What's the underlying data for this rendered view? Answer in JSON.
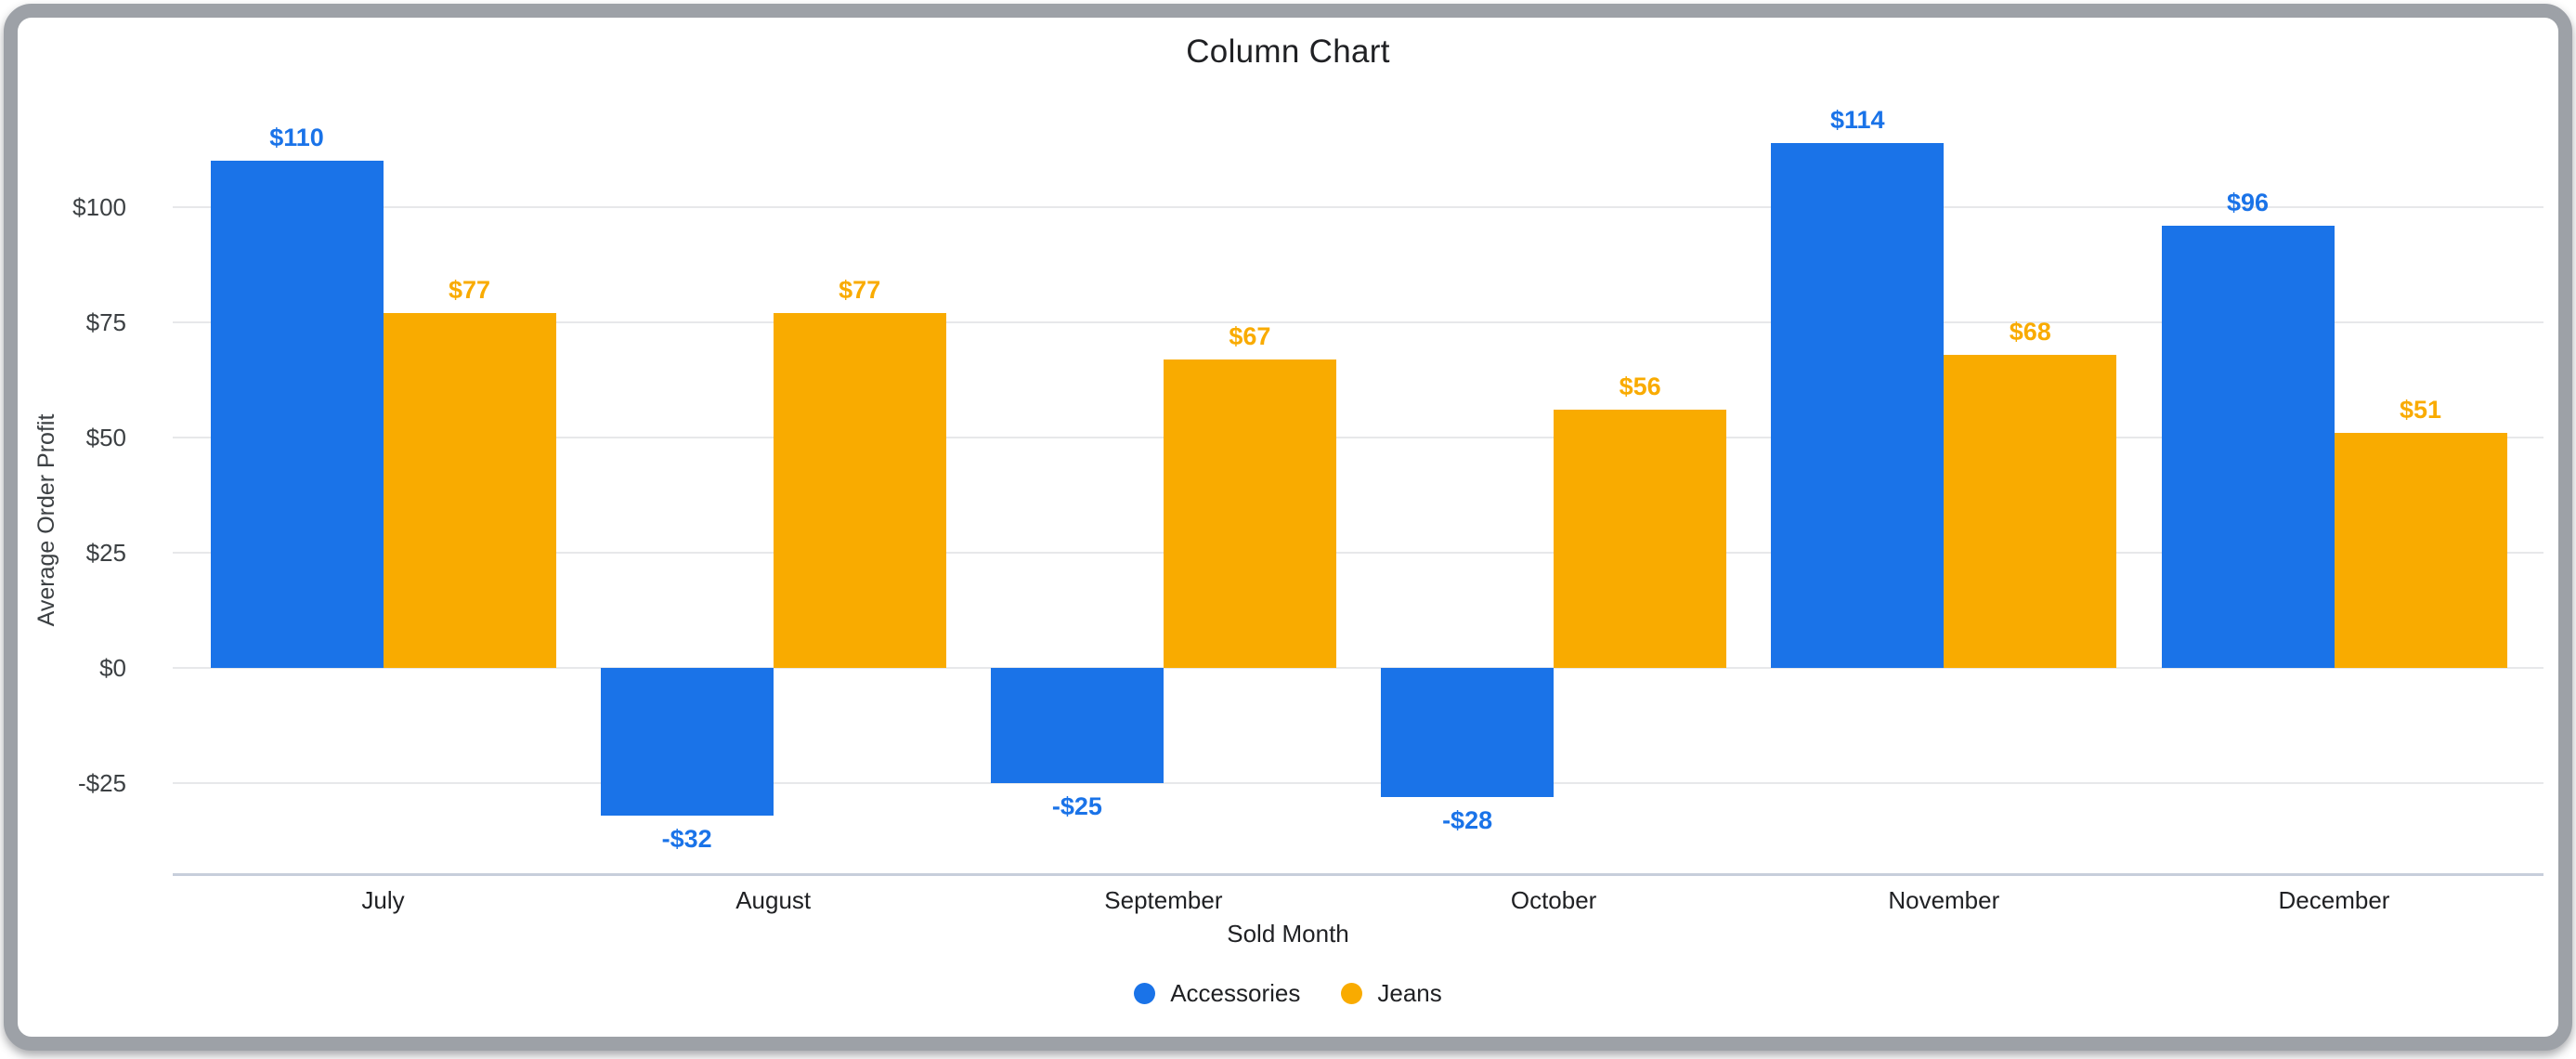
{
  "window": {
    "frame_border_color": "#9da1a7",
    "background_color": "#ffffff"
  },
  "chart_data": {
    "type": "bar",
    "title": "Column Chart",
    "xlabel": "Sold Month",
    "ylabel": "Average Order Profit",
    "categories": [
      "July",
      "August",
      "September",
      "October",
      "November",
      "December"
    ],
    "series": [
      {
        "name": "Accessories",
        "color": "#1a73e8",
        "values": [
          110,
          -32,
          -25,
          -28,
          114,
          96
        ],
        "value_labels": [
          "$110",
          "-$32",
          "-$25",
          "-$28",
          "$114",
          "$96"
        ]
      },
      {
        "name": "Jeans",
        "color": "#f9ab00",
        "values": [
          77,
          77,
          67,
          56,
          68,
          51
        ],
        "value_labels": [
          "$77",
          "$77",
          "$67",
          "$56",
          "$68",
          "$51"
        ]
      }
    ],
    "y_ticks": [
      {
        "value": 100,
        "label": "$100"
      },
      {
        "value": 75,
        "label": "$75"
      },
      {
        "value": 50,
        "label": "$50"
      },
      {
        "value": 25,
        "label": "$25"
      },
      {
        "value": 0,
        "label": "$0"
      },
      {
        "value": -25,
        "label": "-$25"
      }
    ],
    "ylim": [
      -45,
      125
    ],
    "grid": true,
    "gridline_color": "#e7e8ea",
    "axisline_color": "#c7cedb",
    "legend_position": "bottom",
    "bar_labels_shown": true
  }
}
